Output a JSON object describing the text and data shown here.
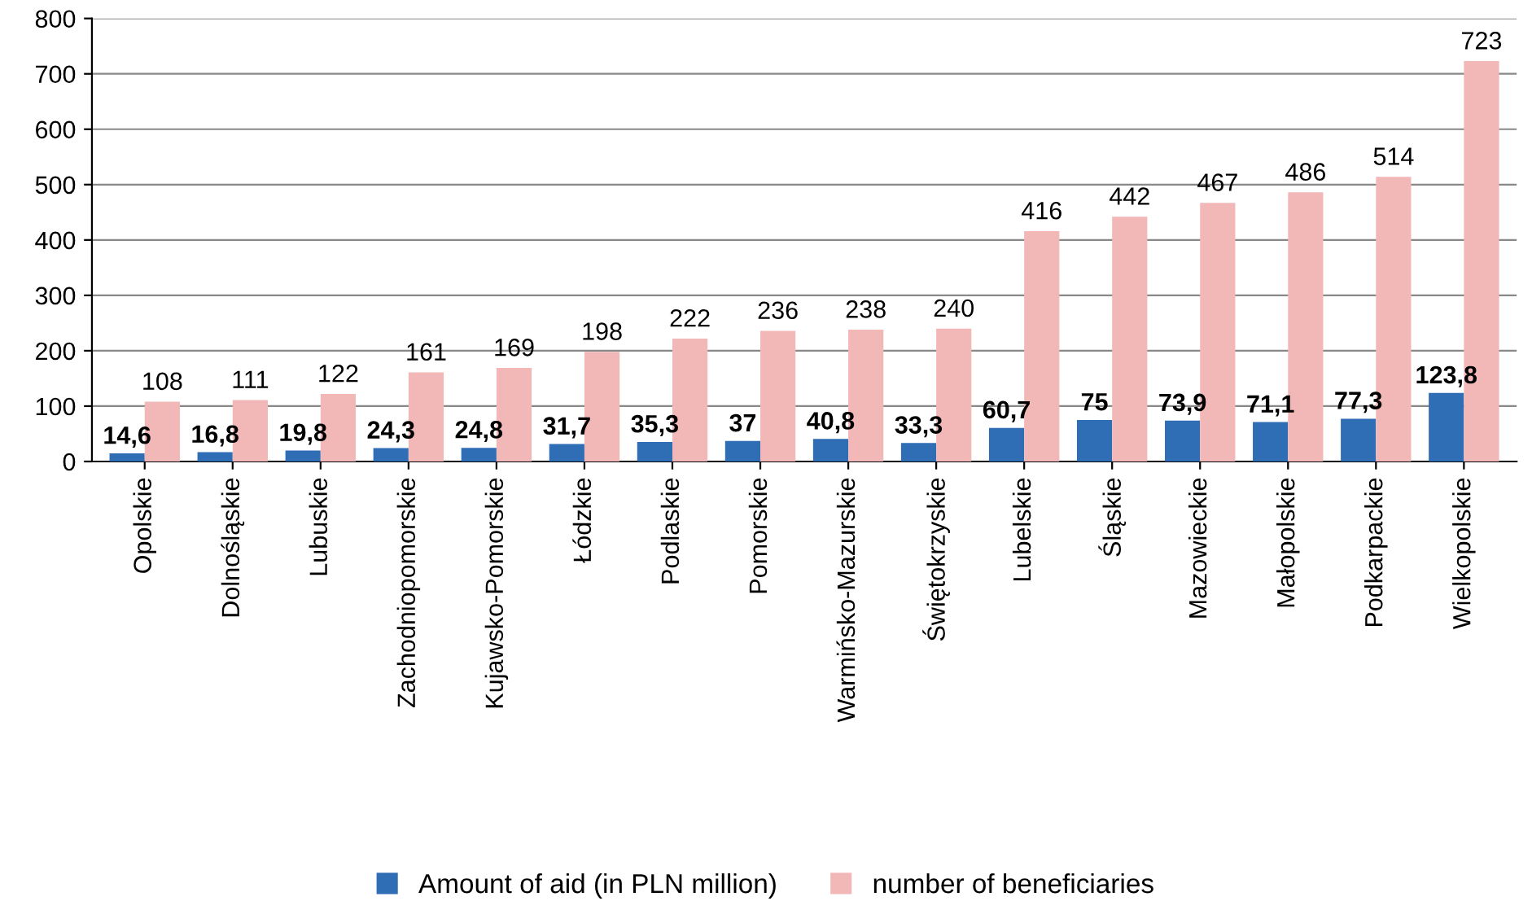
{
  "chart_data": {
    "type": "bar",
    "categories": [
      "Opolskie",
      "Dolnośląskie",
      "Lubuskie",
      "Zachodniopomorskie",
      "Kujawsko-Pomorskie",
      "Łódzkie",
      "Podlaskie",
      "Pomorskie",
      "Warmińsko-Mazurskie",
      "Świętokrzyskie",
      "Lubelskie",
      "Śląskie",
      "Mazowieckie",
      "Małopolskie",
      "Podkarpackie",
      "Wielkopolskie"
    ],
    "series": [
      {
        "name": "Amount of aid (in PLN million)",
        "color": "#2f6db5",
        "values": [
          14.6,
          16.8,
          19.8,
          24.3,
          24.8,
          31.7,
          35.3,
          37,
          40.8,
          33.3,
          60.7,
          75,
          73.9,
          71.1,
          77.3,
          123.8
        ],
        "value_labels": [
          "14,6",
          "16,8",
          "19,8",
          "24,3",
          "24,8",
          "31,7",
          "35,3",
          "37",
          "40,8",
          "33,3",
          "60,7",
          "75",
          "73,9",
          "71,1",
          "77,3",
          "123,8"
        ]
      },
      {
        "name": "number of beneficiaries",
        "color": "#f2b8b8",
        "values": [
          108,
          111,
          122,
          161,
          169,
          198,
          222,
          236,
          238,
          240,
          416,
          442,
          467,
          486,
          514,
          723
        ],
        "value_labels": [
          "108",
          "111",
          "122",
          "161",
          "169",
          "198",
          "222",
          "236",
          "238",
          "240",
          "416",
          "442",
          "467",
          "486",
          "514",
          "723"
        ]
      }
    ],
    "ylim": [
      0,
      800
    ],
    "yticks": [
      0,
      100,
      200,
      300,
      400,
      500,
      600,
      700,
      800
    ],
    "grid": "y",
    "legend": "bottom"
  }
}
